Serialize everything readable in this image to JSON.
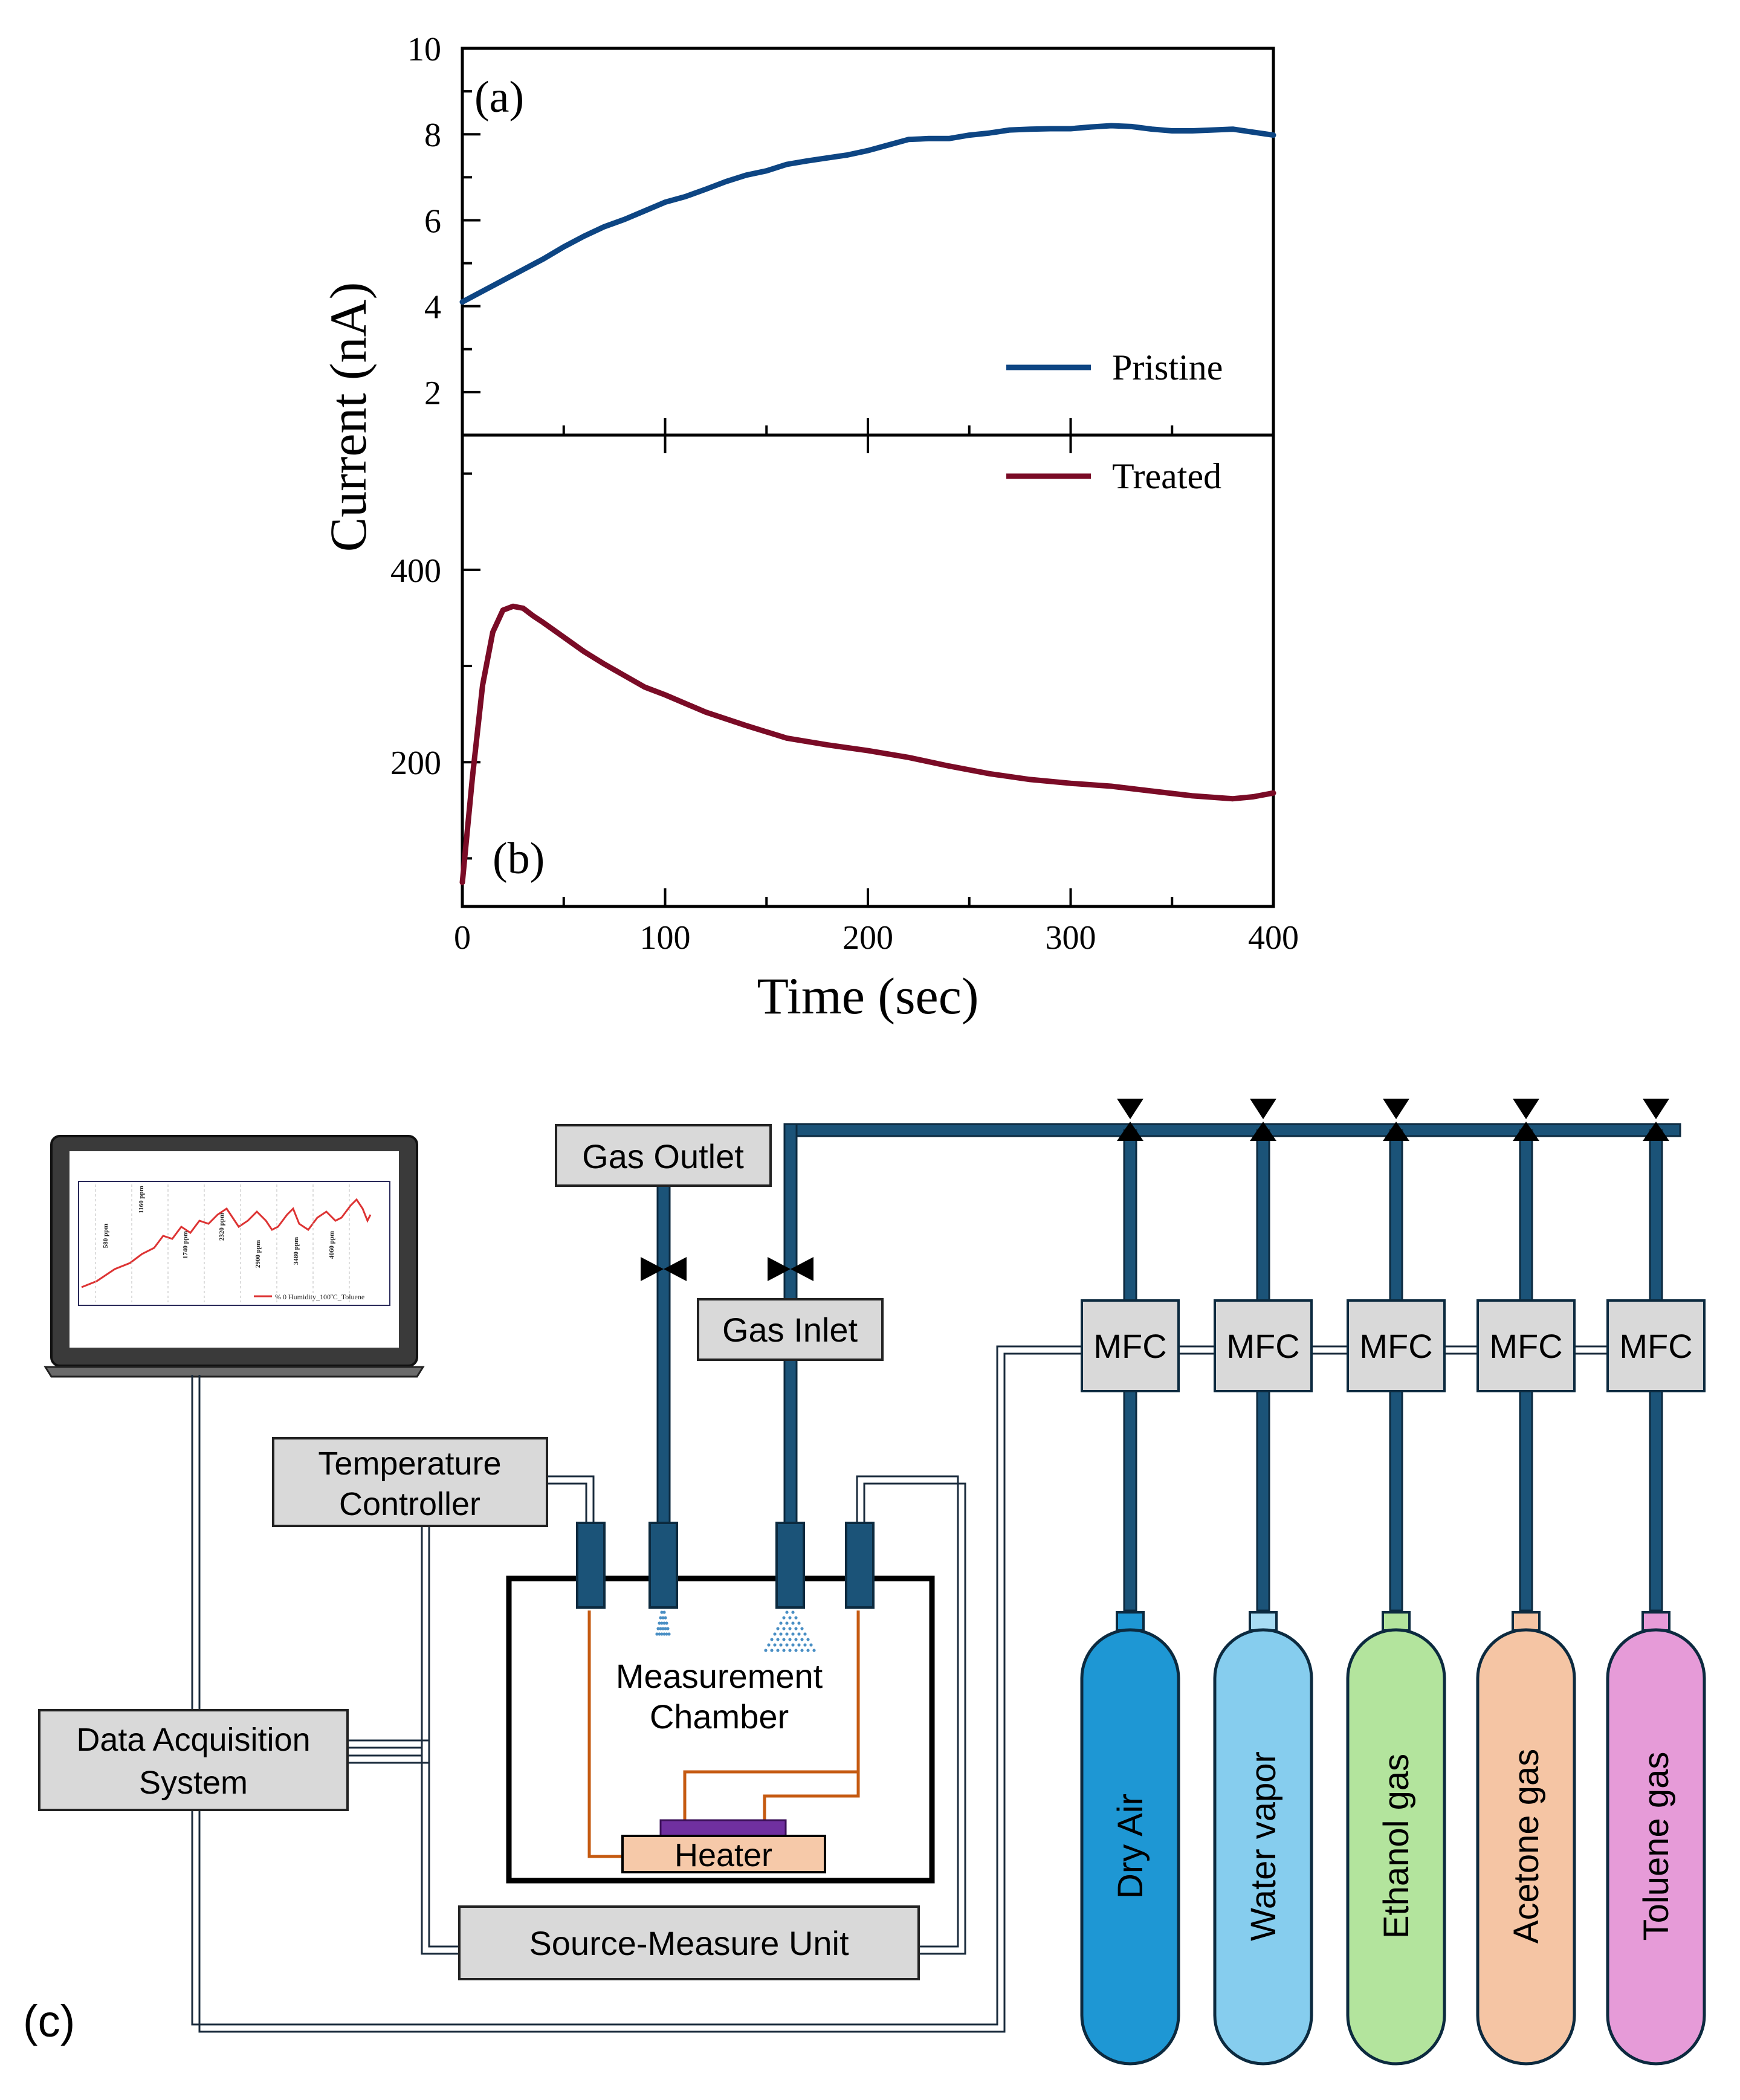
{
  "chart_data": [
    {
      "type": "line",
      "panel_label": "(a)",
      "ylabel": "Current (nA)",
      "ylim": [
        1,
        10
      ],
      "xlim": [
        0,
        400
      ],
      "yticks": [
        2,
        4,
        6,
        8,
        10
      ],
      "ytick_labels": [
        "2",
        "4",
        "6",
        "8",
        "10"
      ],
      "legend_position": "bottom-right",
      "series": [
        {
          "name": "Pristine",
          "color": "#0d4583",
          "x": [
            0,
            10,
            20,
            30,
            40,
            50,
            60,
            70,
            80,
            90,
            100,
            110,
            120,
            130,
            140,
            150,
            160,
            170,
            180,
            190,
            200,
            210,
            220,
            230,
            240,
            250,
            260,
            270,
            280,
            290,
            300,
            310,
            320,
            330,
            340,
            350,
            360,
            370,
            380,
            390,
            400
          ],
          "y": [
            4.1,
            4.35,
            4.6,
            4.85,
            5.1,
            5.38,
            5.63,
            5.85,
            6.02,
            6.22,
            6.42,
            6.55,
            6.72,
            6.9,
            7.05,
            7.15,
            7.3,
            7.38,
            7.45,
            7.52,
            7.62,
            7.75,
            7.88,
            7.9,
            7.9,
            7.98,
            8.03,
            8.1,
            8.12,
            8.13,
            8.13,
            8.17,
            8.2,
            8.18,
            8.12,
            8.08,
            8.08,
            8.1,
            8.12,
            8.05,
            7.98
          ]
        }
      ]
    },
    {
      "type": "line",
      "panel_label": "(b)",
      "xlabel": "Time (sec)",
      "ylim": [
        50,
        540
      ],
      "xlim": [
        0,
        400
      ],
      "xticks": [
        0,
        100,
        200,
        300,
        400
      ],
      "xtick_labels": [
        "0",
        "100",
        "200",
        "300",
        "400"
      ],
      "yticks": [
        200,
        400
      ],
      "ytick_labels": [
        "200",
        "400"
      ],
      "legend_position": "top-right",
      "series": [
        {
          "name": "Treated",
          "color": "#7a0b26",
          "x": [
            0,
            5,
            10,
            15,
            20,
            25,
            30,
            35,
            40,
            50,
            60,
            70,
            80,
            90,
            100,
            120,
            140,
            160,
            180,
            200,
            220,
            240,
            260,
            280,
            300,
            320,
            340,
            360,
            380,
            390,
            400
          ],
          "y": [
            75,
            185,
            280,
            335,
            358,
            362,
            360,
            352,
            345,
            330,
            315,
            302,
            290,
            278,
            270,
            252,
            238,
            225,
            218,
            212,
            205,
            196,
            188,
            182,
            178,
            175,
            170,
            165,
            162,
            164,
            168
          ]
        }
      ]
    }
  ],
  "diagram": {
    "panel_label": "(c)",
    "laptop_screen": {
      "concentration_labels": [
        "580 ppm",
        "1160 ppm",
        "1740 ppm",
        "2320 ppm",
        "2900 ppm",
        "3480 ppm",
        "4060 ppm"
      ],
      "legend": "% 0 Humidity_100ºC_Toluene"
    },
    "boxes": {
      "gas_outlet": "Gas Outlet",
      "gas_inlet": "Gas Inlet",
      "temperature_controller": [
        "Temperature",
        "Controller"
      ],
      "data_acquisition": [
        "Data Acquisition",
        "System"
      ],
      "measurement_chamber": [
        "Measurement",
        "Chamber"
      ],
      "heater": "Heater",
      "source_measure_unit": "Source-Measure Unit"
    },
    "mfc_label": "MFC",
    "cylinders": [
      {
        "label": "Dry Air",
        "color": "#1e97d4",
        "cap": "#1e97d4"
      },
      {
        "label": "Water vapor",
        "color": "#86cdee",
        "cap": "#a8dcf3"
      },
      {
        "label": "Ethanol gas",
        "color": "#b3e49d",
        "cap": "#b3e49d"
      },
      {
        "label": "Acetone gas",
        "color": "#f5c5a4",
        "cap": "#f5c5a4"
      },
      {
        "label": "Toluene gas",
        "color": "#e69bd8",
        "cap": "#e69bd8"
      }
    ],
    "colors": {
      "pipe": "#1b5378",
      "pipe_outline": "#0c2a3f",
      "box_fill": "#d9d9d9",
      "heater_fill": "#f6c9a9",
      "sample_fill": "#7030a0",
      "wire": "#c55a11"
    }
  }
}
